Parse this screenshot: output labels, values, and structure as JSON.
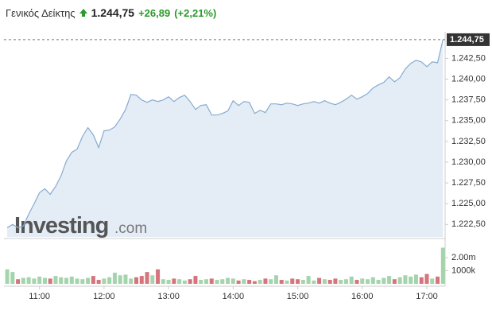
{
  "header": {
    "title": "Γενικός Δείκτης",
    "value": "1.244,75",
    "change": "+26,89",
    "change_pct": "(+2,21%)"
  },
  "watermark": {
    "name": "Investing",
    "suffix": ".com"
  },
  "chart_data": [
    {
      "type": "area",
      "color": "#86abd0",
      "fill": "#e4edf6",
      "x": [
        "10:30",
        "10:35",
        "10:40",
        "10:45",
        "10:50",
        "10:55",
        "11:00",
        "11:05",
        "11:10",
        "11:15",
        "11:20",
        "11:25",
        "11:30",
        "11:35",
        "11:40",
        "11:45",
        "11:50",
        "11:55",
        "12:00",
        "12:05",
        "12:10",
        "12:15",
        "12:20",
        "12:25",
        "12:30",
        "12:35",
        "12:40",
        "12:45",
        "12:50",
        "12:55",
        "13:00",
        "13:05",
        "13:10",
        "13:15",
        "13:20",
        "13:25",
        "13:30",
        "13:35",
        "13:40",
        "13:45",
        "13:50",
        "13:55",
        "14:00",
        "14:05",
        "14:10",
        "14:15",
        "14:20",
        "14:25",
        "14:30",
        "14:35",
        "14:40",
        "14:45",
        "14:50",
        "14:55",
        "15:00",
        "15:05",
        "15:10",
        "15:15",
        "15:20",
        "15:25",
        "15:30",
        "15:35",
        "15:40",
        "15:45",
        "15:50",
        "15:55",
        "16:00",
        "16:05",
        "16:10",
        "16:15",
        "16:20",
        "16:25",
        "16:30",
        "16:35",
        "16:40",
        "16:45",
        "16:50",
        "16:55",
        "17:00",
        "17:05",
        "17:10",
        "17:15"
      ],
      "values": [
        1222.12,
        1222.5,
        1222.12,
        1222.31,
        1223.74,
        1224.98,
        1226.32,
        1226.8,
        1226.13,
        1227.08,
        1228.33,
        1230.14,
        1231.19,
        1231.57,
        1233.1,
        1234.15,
        1233.29,
        1231.76,
        1233.77,
        1233.87,
        1234.25,
        1235.2,
        1236.35,
        1238.16,
        1238.07,
        1237.5,
        1237.21,
        1237.5,
        1237.3,
        1237.5,
        1237.88,
        1237.3,
        1237.78,
        1238.07,
        1237.3,
        1236.35,
        1236.83,
        1236.92,
        1235.68,
        1235.68,
        1235.87,
        1236.16,
        1237.4,
        1236.83,
        1237.3,
        1237.21,
        1235.87,
        1236.25,
        1235.97,
        1237.02,
        1237.02,
        1236.92,
        1237.11,
        1237.02,
        1236.83,
        1237.02,
        1237.11,
        1237.3,
        1237.11,
        1237.4,
        1237.11,
        1236.92,
        1237.21,
        1237.59,
        1238.07,
        1237.59,
        1237.88,
        1238.26,
        1238.93,
        1239.31,
        1239.6,
        1240.27,
        1239.69,
        1240.17,
        1241.22,
        1241.89,
        1242.27,
        1242.08,
        1241.51,
        1242.08,
        1241.98,
        1244.75
      ],
      "xlim": [
        "10:27",
        "17:17"
      ],
      "xticks": [
        "11:00",
        "12:00",
        "13:00",
        "14:00",
        "15:00",
        "16:00",
        "17:00"
      ],
      "ylim": [
        1221,
        1245.7
      ],
      "yticks": [
        {
          "value": 1222.5,
          "label": "1.222,50"
        },
        {
          "value": 1225,
          "label": "1.225,00"
        },
        {
          "value": 1227.5,
          "label": "1.227,50"
        },
        {
          "value": 1230,
          "label": "1.230,00"
        },
        {
          "value": 1232.5,
          "label": "1.232,50"
        },
        {
          "value": 1235,
          "label": "1.235,00"
        },
        {
          "value": 1237.5,
          "label": "1.237,50"
        },
        {
          "value": 1240,
          "label": "1.240,00"
        },
        {
          "value": 1242.5,
          "label": "1.242,50"
        }
      ]
    },
    {
      "type": "bar",
      "up_color": "#a3d4ac",
      "down_color": "#d7737c",
      "values": [
        1100000,
        900000,
        350000,
        450000,
        500000,
        400000,
        550000,
        450000,
        400000,
        600000,
        500000,
        450000,
        550000,
        400000,
        350000,
        450000,
        600000,
        300000,
        400000,
        500000,
        850000,
        650000,
        700000,
        400000,
        500000,
        600000,
        900000,
        650000,
        1100000,
        350000,
        300000,
        400000,
        350000,
        250000,
        350000,
        600000,
        300000,
        350000,
        400000,
        300000,
        350000,
        450000,
        400000,
        250000,
        350000,
        300000,
        200000,
        300000,
        400000,
        350000,
        650000,
        300000,
        250000,
        400000,
        350000,
        300000,
        600000,
        250000,
        450000,
        350000,
        300000,
        400000,
        300000,
        350000,
        550000,
        300000,
        400000,
        350000,
        500000,
        300000,
        450000,
        600000,
        350000,
        500000,
        650000,
        550000,
        700000,
        500000,
        750000,
        400000,
        550000,
        2750000
      ],
      "ylim": [
        0,
        3450000
      ],
      "yticks": [
        {
          "value": 1000000,
          "label": "1000k"
        },
        {
          "value": 2000000,
          "label": "2.00m"
        }
      ]
    }
  ]
}
